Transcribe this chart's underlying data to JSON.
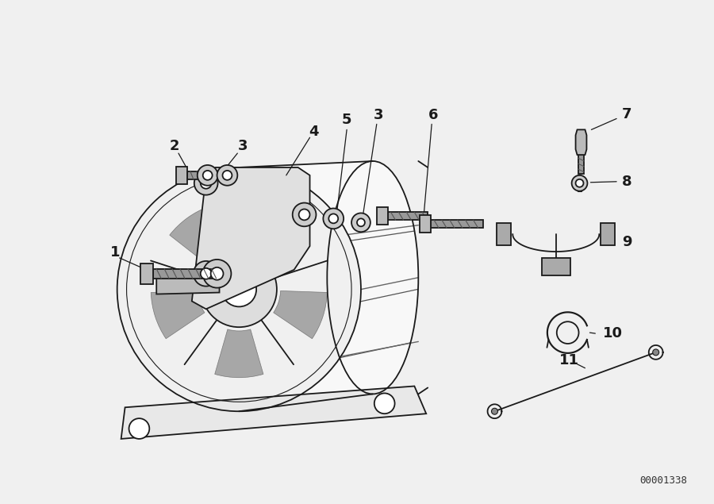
{
  "bg_color": "#f0f0f0",
  "line_color": "#1a1a1a",
  "fig_width": 9.0,
  "fig_height": 6.35,
  "diagram_id": "00001338",
  "title_bg": "#f0f0f0"
}
